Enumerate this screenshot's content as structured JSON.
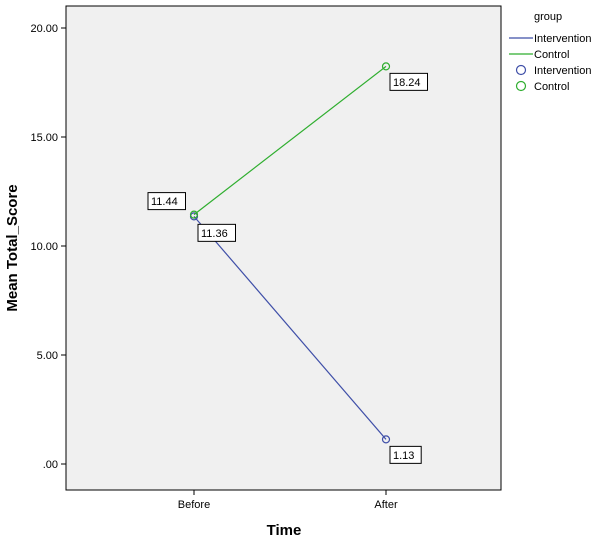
{
  "chart_data": {
    "type": "line",
    "title": "",
    "xlabel": "Time",
    "ylabel": "Mean Total_Score",
    "categories": [
      "Before",
      "After"
    ],
    "ylim": [
      0,
      20
    ],
    "y_ticks": [
      0,
      5,
      10,
      15,
      20
    ],
    "y_tick_labels": [
      ".00",
      "5.00",
      "10.00",
      "15.00",
      "20.00"
    ],
    "grid": false,
    "legend_position": "right",
    "legend": {
      "title": "group",
      "line_entries": [
        "Intervention",
        "Control"
      ],
      "marker_entries": [
        "Intervention",
        "Control"
      ]
    },
    "series": [
      {
        "name": "Intervention",
        "color": "#3f4fa8",
        "values": [
          11.36,
          1.13
        ],
        "labels": [
          "11.36",
          "1.13"
        ]
      },
      {
        "name": "Control",
        "color": "#2fae2f",
        "values": [
          11.44,
          18.24
        ],
        "labels": [
          "11.44",
          "18.24"
        ]
      }
    ],
    "plot_background": "#f0f0f0"
  }
}
